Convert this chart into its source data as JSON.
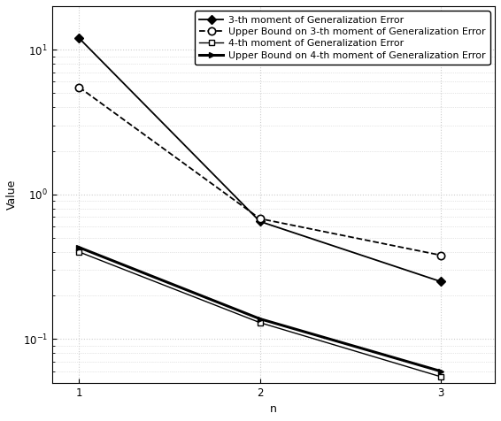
{
  "n_values": [
    1,
    2,
    3
  ],
  "moment3_actual": [
    12.0,
    0.65,
    0.25
  ],
  "moment3_upper": [
    5.5,
    0.68,
    0.38
  ],
  "moment4_actual": [
    0.4,
    0.13,
    0.055
  ],
  "moment4_upper": [
    0.43,
    0.138,
    0.06
  ],
  "xlabel": "n",
  "ylabel": "Value",
  "legend_labels": [
    "3-th moment of Generalization Error",
    "Upper Bound on 3-th moment of Generalization Error",
    "4-th moment of Generalization Error",
    "Upper Bound on 4-th moment of Generalization Error"
  ],
  "ylim_bottom": 0.05,
  "ylim_top": 20.0,
  "xlim": [
    0.85,
    3.3
  ],
  "yticks": [
    0.1,
    1.0,
    10.0
  ],
  "xticks": [
    1,
    2,
    3
  ],
  "grid_color": "#cccccc",
  "line_color": "#000000",
  "fontsize": 9,
  "legend_fontsize": 7.8
}
